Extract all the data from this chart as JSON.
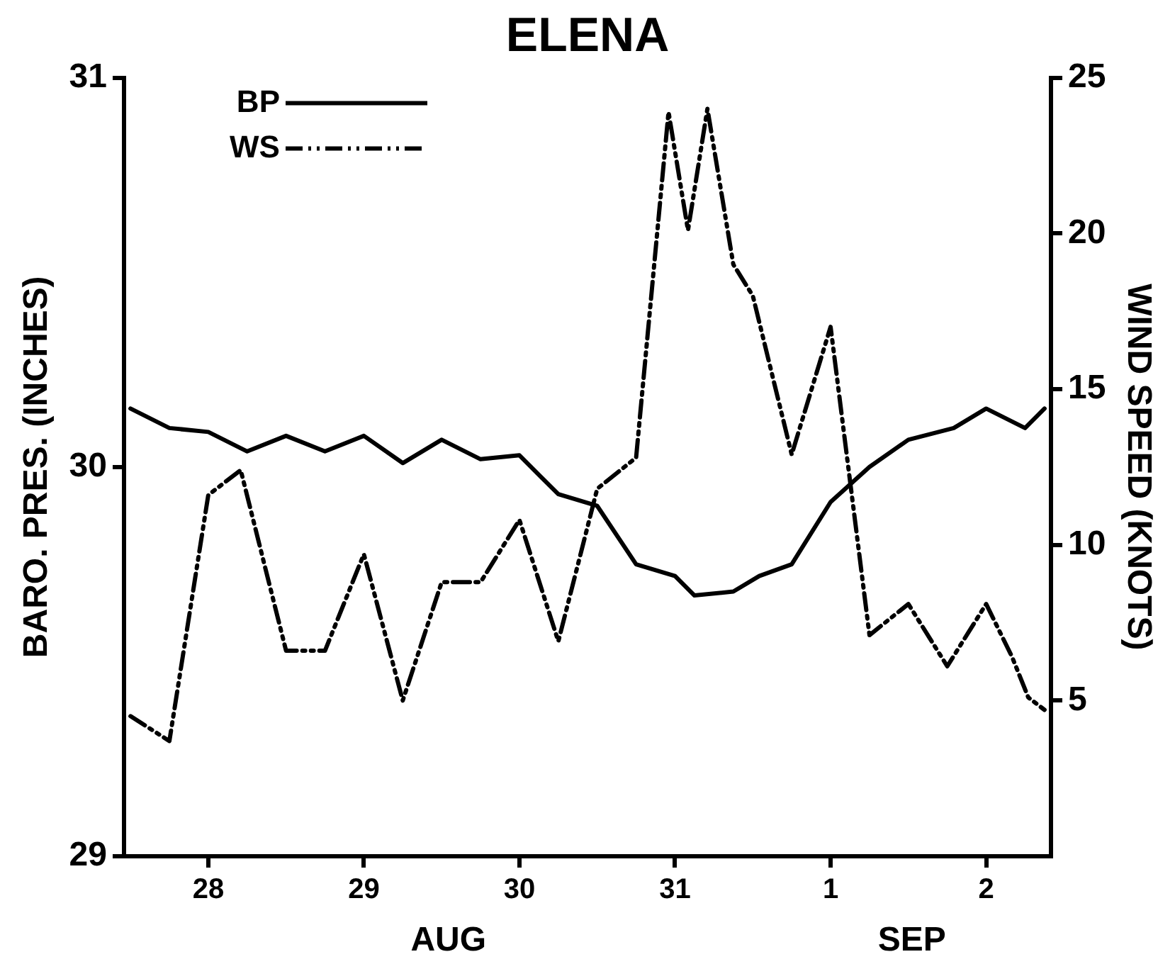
{
  "chart_data": {
    "type": "line",
    "title": "ELENA",
    "ylabel": "BARO. PRES. (INCHES)",
    "y2label": "WIND SPEED (KNOTS)",
    "xlim": [
      "--08-27T11:00",
      "--09-02T10:00"
    ],
    "xticks": [
      {
        "value": "--08-28",
        "label": "28"
      },
      {
        "value": "--08-29",
        "label": "29"
      },
      {
        "value": "--08-30",
        "label": "30"
      },
      {
        "value": "--08-31",
        "label": "31"
      },
      {
        "value": "--09-01",
        "label": "1"
      },
      {
        "value": "--09-02",
        "label": "2"
      }
    ],
    "ylim": [
      29,
      31
    ],
    "yticks": [
      29,
      30,
      31
    ],
    "y2lim": [
      0,
      25
    ],
    "y2ticks": [
      5,
      10,
      15,
      20,
      25
    ],
    "grid": false,
    "legend": "top left",
    "marker": "none",
    "annotations": [
      "AUG",
      "SEP"
    ],
    "series": [
      {
        "name": "BP",
        "color": "#000000",
        "line_style": "solid",
        "x": [
          "--08-27T12:00",
          "--08-27T18:00",
          "--08-28T00:00",
          "--08-28T06:00",
          "--08-28T12:00",
          "--08-28T18:00",
          "--08-29T00:00",
          "--08-29T06:00",
          "--08-29T12:00",
          "--08-29T18:00",
          "--08-30T00:00",
          "--08-30T06:00",
          "--08-30T12:00",
          "--08-30T18:00",
          "--08-31T00:00",
          "--08-31T03:00",
          "--08-31T09:00",
          "--08-31T13:00",
          "--08-31T18:00",
          "--09-01T00:00",
          "--09-01T06:00",
          "--09-01T12:00",
          "--09-01T19:00",
          "--09-02T00:00",
          "--09-02T06:00",
          "--09-02T09:00"
        ],
        "values": [
          30.15,
          30.1,
          30.09,
          30.04,
          30.08,
          30.04,
          30.08,
          30.01,
          30.07,
          30.02,
          30.03,
          29.93,
          29.9,
          29.75,
          29.72,
          29.67,
          29.68,
          29.72,
          29.75,
          29.91,
          30.0,
          30.07,
          30.1,
          30.15,
          30.1,
          30.15
        ]
      },
      {
        "name": "WS",
        "color": "#000000",
        "line_style": "dashed",
        "axis": "y2",
        "x": [
          "--08-27T12:00",
          "--08-27T18:00",
          "--08-28T00:00",
          "--08-28T05:00",
          "--08-28T12:00",
          "--08-28T18:00",
          "--08-29T00:00",
          "--08-29T06:00",
          "--08-29T12:00",
          "--08-29T18:00",
          "--08-30T00:00",
          "--08-30T06:00",
          "--08-30T12:00",
          "--08-30T18:00",
          "--08-30T23:00",
          "--08-31T02:00",
          "--08-31T05:00",
          "--08-31T09:00",
          "--08-31T12:00",
          "--08-31T18:00",
          "--09-01T00:00",
          "--09-01T06:00",
          "--09-01T12:00",
          "--09-01T18:00",
          "--09-02T00:00",
          "--09-02T04:00",
          "--09-02T06:30",
          "--09-02T09:00"
        ],
        "values": [
          4.5,
          3.7,
          11.6,
          12.4,
          6.6,
          6.6,
          9.7,
          5.0,
          8.8,
          8.8,
          10.8,
          6.9,
          11.8,
          12.8,
          23.9,
          20.1,
          24.0,
          19.0,
          18.0,
          12.9,
          17.0,
          7.1,
          8.1,
          6.1,
          8.1,
          6.4,
          5.1,
          4.7
        ]
      }
    ]
  }
}
